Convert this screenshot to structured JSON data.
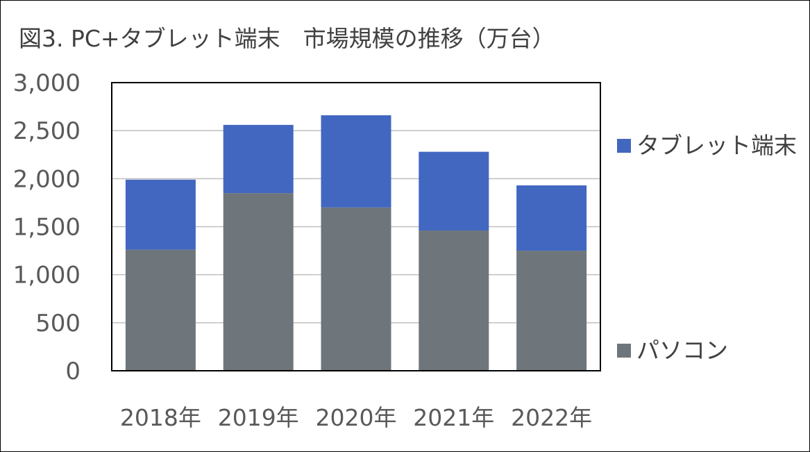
{
  "chart_data": {
    "type": "bar",
    "stacked": true,
    "title": "図3. PC+タブレット端末　市場規模の推移（万台）",
    "xlabel": "",
    "ylabel": "",
    "categories": [
      "2018年",
      "2019年",
      "2020年",
      "2021年",
      "2022年"
    ],
    "series": [
      {
        "name": "パソコン",
        "color": "#6e767b",
        "values": [
          1260,
          1850,
          1700,
          1460,
          1250
        ]
      },
      {
        "name": "タブレット端末",
        "color": "#4267c1",
        "values": [
          730,
          710,
          960,
          820,
          680
        ]
      }
    ],
    "ylim": [
      0,
      3000
    ],
    "yticks": [
      0,
      500,
      1000,
      1500,
      2000,
      2500,
      3000
    ],
    "ytick_labels": [
      "0",
      "500",
      "1,000",
      "1,500",
      "2,000",
      "2,500",
      "3,000"
    ],
    "grid": true,
    "legend_placement": "right"
  }
}
